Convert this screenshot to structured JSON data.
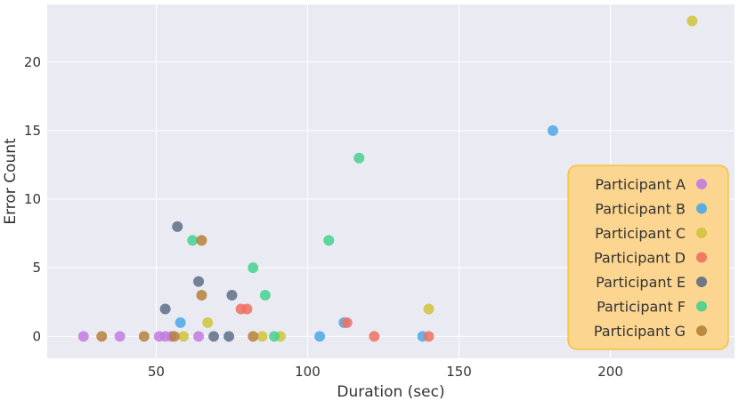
{
  "chart_data": {
    "type": "scatter",
    "title": "",
    "xlabel": "Duration (sec)",
    "ylabel": "Error Count",
    "xlim": [
      14,
      241
    ],
    "ylim": [
      -1.6,
      24.2
    ],
    "xticks": [
      50,
      100,
      150,
      200
    ],
    "yticks": [
      0,
      5,
      10,
      15,
      20
    ],
    "grid": true,
    "legend_position": "bottom-right",
    "legend_background": "#fdd58a",
    "series": [
      {
        "name": "Participant A",
        "color": "#c17be0",
        "x": [
          26,
          38,
          51,
          53,
          55,
          64
        ],
        "y": [
          0,
          0,
          0,
          0,
          0,
          0
        ]
      },
      {
        "name": "Participant B",
        "color": "#4aa8e8",
        "x": [
          58,
          104,
          112,
          138,
          181
        ],
        "y": [
          1,
          0,
          1,
          0,
          15
        ]
      },
      {
        "name": "Participant C",
        "color": "#cfc33a",
        "x": [
          59,
          67,
          85,
          91,
          140,
          227
        ],
        "y": [
          0,
          1,
          0,
          0,
          2,
          23
        ]
      },
      {
        "name": "Participant D",
        "color": "#f07060",
        "x": [
          78,
          80,
          113,
          122,
          140
        ],
        "y": [
          2,
          2,
          1,
          0,
          0
        ]
      },
      {
        "name": "Participant E",
        "color": "#5d6f86",
        "x": [
          53,
          57,
          64,
          69,
          74,
          75
        ],
        "y": [
          2,
          8,
          4,
          0,
          0,
          3
        ]
      },
      {
        "name": "Participant F",
        "color": "#45d08f",
        "x": [
          62,
          82,
          86,
          89,
          107,
          117
        ],
        "y": [
          7,
          5,
          3,
          0,
          7,
          13
        ]
      },
      {
        "name": "Participant G",
        "color": "#b5813a",
        "x": [
          32,
          46,
          56,
          65,
          65,
          82
        ],
        "y": [
          0,
          0,
          0,
          7,
          3,
          0
        ]
      }
    ]
  }
}
